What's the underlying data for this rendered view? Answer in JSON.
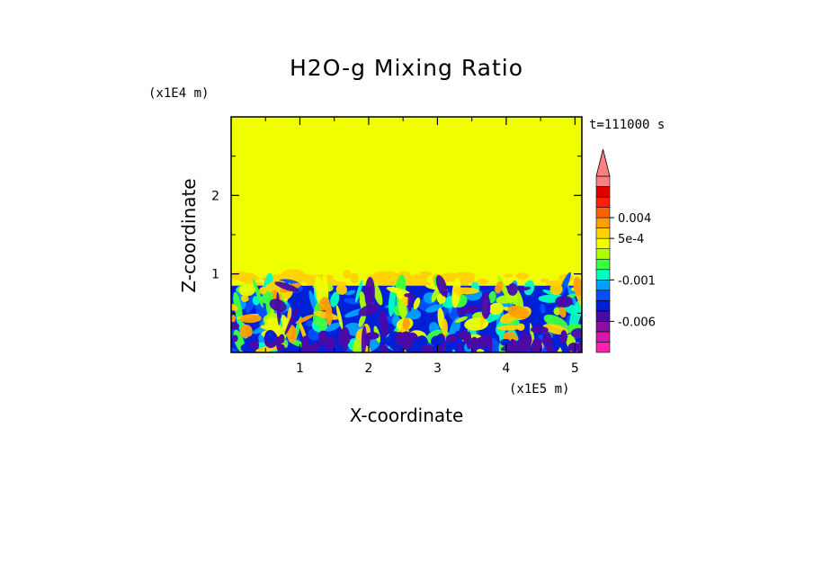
{
  "chart_data": {
    "type": "heatmap",
    "title": "H2O-g Mixing Ratio",
    "xlabel": "X-coordinate",
    "ylabel": "Z-coordinate",
    "x_unit": "(x1E5 m)",
    "y_unit": "(x1E4 m)",
    "time_label": "t=111000 s",
    "xlim": [
      0.0,
      5.1
    ],
    "ylim": [
      0.0,
      3.0
    ],
    "x_ticks": [
      {
        "value": 1,
        "label": "1"
      },
      {
        "value": 2,
        "label": "2"
      },
      {
        "value": 3,
        "label": "3"
      },
      {
        "value": 4,
        "label": "4"
      },
      {
        "value": 5,
        "label": "5"
      }
    ],
    "y_ticks": [
      {
        "value": 1,
        "label": "1"
      },
      {
        "value": 2,
        "label": "2"
      }
    ],
    "background_level_color": "#f0ff00",
    "layers": {
      "upper_uniform_from": 1.0,
      "anomaly_band": [
        0.85,
        1.0
      ],
      "lower_turbulent_top": 0.85
    },
    "colorbar": {
      "colors": [
        "#ff1fb0",
        "#d418a8",
        "#8a0fa0",
        "#4a0aa8",
        "#0020d8",
        "#0050ff",
        "#00a0ff",
        "#00ffc0",
        "#40ff40",
        "#b0ff00",
        "#f0ff00",
        "#ffd400",
        "#ffa000",
        "#ff6000",
        "#ff2000",
        "#e00000",
        "#ff8080"
      ],
      "labels": [
        {
          "text": "0.004",
          "value": 0.004
        },
        {
          "text": "5e-4",
          "value": 0.0005
        },
        {
          "text": "-0.001",
          "value": -0.001
        },
        {
          "text": "-0.006",
          "value": -0.006
        }
      ],
      "extend": "max"
    }
  }
}
